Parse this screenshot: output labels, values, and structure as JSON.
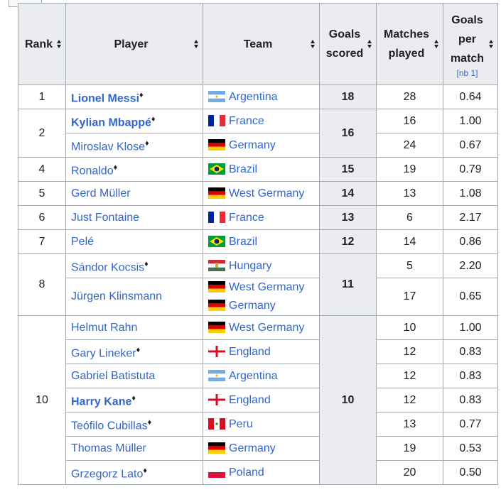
{
  "table": {
    "headers": [
      "Rank",
      "Player",
      "Team",
      "Goals scored",
      "Matches played",
      "Goals per match"
    ],
    "header_note": "[nb 1]",
    "groups": [
      {
        "rank": "1",
        "goals": "18",
        "players": [
          {
            "name": "Lionel Messi",
            "bold": true,
            "note": "♦",
            "teams": [
              "Argentina"
            ],
            "matches": "28",
            "per_match": "0.64"
          }
        ]
      },
      {
        "rank": "2",
        "goals": "16",
        "players": [
          {
            "name": "Kylian Mbappé",
            "bold": true,
            "note": "♦",
            "teams": [
              "France"
            ],
            "matches": "16",
            "per_match": "1.00"
          },
          {
            "name": "Miroslav Klose",
            "bold": false,
            "note": "♦",
            "teams": [
              "Germany"
            ],
            "matches": "24",
            "per_match": "0.67"
          }
        ]
      },
      {
        "rank": "4",
        "goals": "15",
        "players": [
          {
            "name": "Ronaldo",
            "bold": false,
            "note": "♦",
            "teams": [
              "Brazil"
            ],
            "matches": "19",
            "per_match": "0.79"
          }
        ]
      },
      {
        "rank": "5",
        "goals": "14",
        "players": [
          {
            "name": "Gerd Müller",
            "bold": false,
            "teams": [
              "West Germany"
            ],
            "matches": "13",
            "per_match": "1.08"
          }
        ]
      },
      {
        "rank": "6",
        "goals": "13",
        "players": [
          {
            "name": "Just Fontaine",
            "bold": false,
            "teams": [
              "France"
            ],
            "matches": "6",
            "per_match": "2.17"
          }
        ]
      },
      {
        "rank": "7",
        "goals": "12",
        "players": [
          {
            "name": "Pelé",
            "bold": false,
            "teams": [
              "Brazil"
            ],
            "matches": "14",
            "per_match": "0.86"
          }
        ]
      },
      {
        "rank": "8",
        "goals": "11",
        "players": [
          {
            "name": "Sándor Kocsis",
            "bold": false,
            "note": "♦",
            "teams": [
              "Hungary"
            ],
            "matches": "5",
            "per_match": "2.20"
          },
          {
            "name": "Jürgen Klinsmann",
            "bold": false,
            "teams": [
              "West Germany",
              "Germany"
            ],
            "matches": "17",
            "per_match": "0.65"
          }
        ]
      },
      {
        "rank": "10",
        "goals": "10",
        "players": [
          {
            "name": "Helmut Rahn",
            "bold": false,
            "teams": [
              "West Germany"
            ],
            "matches": "10",
            "per_match": "1.00"
          },
          {
            "name": "Gary Lineker",
            "bold": false,
            "note": "♦",
            "teams": [
              "England"
            ],
            "matches": "12",
            "per_match": "0.83"
          },
          {
            "name": "Gabriel Batistuta",
            "bold": false,
            "teams": [
              "Argentina"
            ],
            "matches": "12",
            "per_match": "0.83"
          },
          {
            "name": "Harry Kane",
            "bold": true,
            "note": "♦",
            "teams": [
              "England"
            ],
            "matches": "12",
            "per_match": "0.83"
          },
          {
            "name": "Teófilo Cubillas",
            "bold": false,
            "note": "♦",
            "teams": [
              "Peru"
            ],
            "matches": "13",
            "per_match": "0.77"
          },
          {
            "name": "Thomas Müller",
            "bold": false,
            "teams": [
              "Germany"
            ],
            "matches": "19",
            "per_match": "0.53"
          },
          {
            "name": "Grzegorz Lato",
            "bold": false,
            "note": "♦",
            "teams": [
              "Poland"
            ],
            "matches": "20",
            "per_match": "0.50"
          }
        ]
      }
    ]
  }
}
